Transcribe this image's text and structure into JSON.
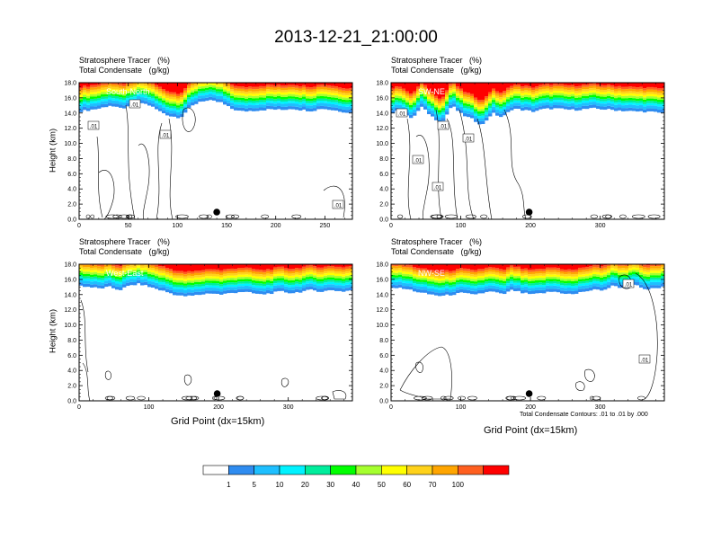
{
  "title": "2013-12-21_21:00:00",
  "colors": {
    "levels": [
      "#ffffff",
      "#2f8cf0",
      "#1ebfff",
      "#00f2ff",
      "#00ed9c",
      "#00ff00",
      "#a5ff2e",
      "#ffff00",
      "#ffd21a",
      "#ffa500",
      "#ff5f1f",
      "#ff0000"
    ],
    "contour": "#000000",
    "marker": "#000000"
  },
  "colorbar": {
    "labels": [
      "1",
      "5",
      "10",
      "20",
      "30",
      "40",
      "50",
      "60",
      "70",
      "100"
    ]
  },
  "footnote": "Total Condensate Contours: .01 to .01 by .000",
  "chart_data": [
    {
      "type": "heatmap",
      "panel": "top-left",
      "title_left": "Stratosphere Tracer   (%)",
      "title_left2": "Total Condensate   (g/kg)",
      "section_label": "South-North",
      "ylabel": "Height (km)",
      "xlabel": "",
      "xlim": [
        0,
        278
      ],
      "ylim": [
        0,
        18
      ],
      "xticks": [
        "0",
        "50",
        "100",
        "150",
        "200",
        "250"
      ],
      "yticks": [
        "0.0",
        "2.0",
        "4.0",
        "6.0",
        "8.0",
        "10.0",
        "12.0",
        "14.0",
        "16.0",
        "18.0"
      ],
      "tracer_base_km": [
        14.2,
        14.4,
        14.6,
        15.0,
        14.6,
        14.8,
        15.4,
        15.0,
        14.2,
        13.6,
        13.4,
        14.8,
        15.6,
        15.6,
        15.4,
        14.6,
        14.2,
        14.3,
        14.4,
        14.5,
        14.4,
        14.6,
        14.4,
        14.3,
        14.6,
        14.4,
        14.2,
        14.0
      ],
      "contour_labels": [
        ".01",
        ".01",
        ".01",
        ".01"
      ],
      "marker_x": 140
    },
    {
      "type": "heatmap",
      "panel": "top-right",
      "title_left": "Stratosphere Tracer   (%)",
      "title_left2": "Total Condensate   (g/kg)",
      "section_label": "SW-NE",
      "ylabel": "",
      "xlabel": "",
      "xlim": [
        0,
        392
      ],
      "ylim": [
        0,
        18
      ],
      "xticks": [
        "0",
        "100",
        "200",
        "300"
      ],
      "yticks": [
        "0.0",
        "2.0",
        "4.0",
        "6.0",
        "8.0",
        "10.0",
        "12.0",
        "14.0",
        "16.0",
        "18.0"
      ],
      "tracer_base_km": [
        14.0,
        14.4,
        13.2,
        14.8,
        13.6,
        12.6,
        15.0,
        13.8,
        13.2,
        12.4,
        14.0,
        13.4,
        14.6,
        14.4,
        14.2,
        14.5,
        14.6,
        14.5,
        14.4,
        14.5,
        14.6,
        14.5,
        14.4,
        14.3,
        14.2,
        14.2,
        14.1,
        14.0
      ],
      "contour_labels": [
        ".01",
        ".01",
        ".01",
        ".01",
        ".01"
      ],
      "marker_x": 198
    },
    {
      "type": "heatmap",
      "panel": "bottom-left",
      "title_left": "Stratosphere Tracer   (%)",
      "title_left2": "Total Condensate   (g/kg)",
      "section_label": "West-East",
      "ylabel": "Height (km)",
      "xlabel": "Grid Point (dx=15km)",
      "xlim": [
        0,
        392
      ],
      "ylim": [
        0,
        18
      ],
      "xticks": [
        "0",
        "100",
        "200",
        "300"
      ],
      "yticks": [
        "0.0",
        "2.0",
        "4.0",
        "6.0",
        "8.0",
        "10.0",
        "12.0",
        "14.0",
        "16.0",
        "18.0"
      ],
      "tracer_base_km": [
        15.2,
        15.0,
        14.8,
        15.0,
        14.6,
        15.2,
        15.4,
        15.0,
        14.6,
        14.2,
        13.8,
        13.8,
        14.0,
        14.2,
        14.0,
        14.2,
        14.4,
        14.2,
        14.0,
        14.2,
        14.4,
        14.2,
        14.4,
        14.6,
        14.4,
        14.6,
        14.4,
        14.6
      ],
      "contour_labels": [],
      "marker_x": 198
    },
    {
      "type": "heatmap",
      "panel": "bottom-right",
      "title_left": "Stratosphere Tracer   (%)",
      "title_left2": "Total Condensate   (g/kg)",
      "section_label": "NW-SE",
      "ylabel": "",
      "xlabel": "Grid Point (dx=15km)",
      "xlim": [
        0,
        392
      ],
      "ylim": [
        0,
        18
      ],
      "xticks": [
        "0",
        "100",
        "200",
        "300"
      ],
      "yticks": [
        "0.0",
        "2.0",
        "4.0",
        "6.0",
        "8.0",
        "10.0",
        "12.0",
        "14.0",
        "16.0",
        "18.0"
      ],
      "tracer_base_km": [
        15.0,
        14.8,
        14.6,
        14.2,
        14.0,
        13.8,
        14.0,
        14.2,
        14.0,
        14.2,
        14.4,
        14.0,
        14.6,
        14.2,
        14.0,
        14.2,
        14.4,
        14.2,
        14.0,
        14.4,
        14.6,
        14.6,
        15.2,
        14.8,
        15.4,
        14.6,
        14.8,
        15.0
      ],
      "contour_labels": [
        ".01",
        ".01"
      ],
      "marker_x": 198
    }
  ]
}
